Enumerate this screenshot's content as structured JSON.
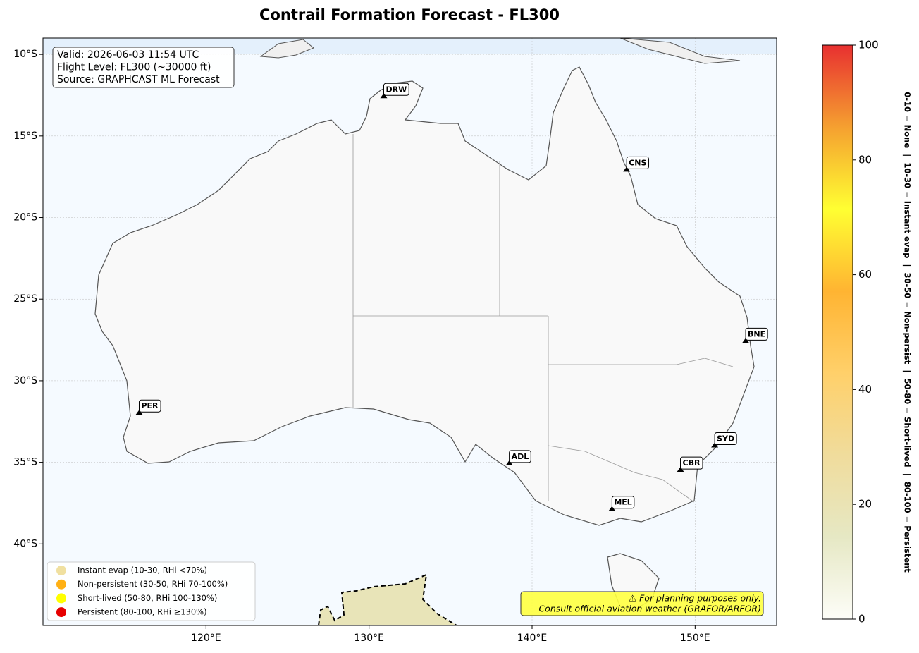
{
  "chart_data": {
    "type": "map",
    "title": "Contrail Formation Forecast - FL300",
    "xlim": [
      110,
      155
    ],
    "ylim": [
      -45,
      -9
    ],
    "xticks": [
      {
        "value": 120,
        "label": "120°E"
      },
      {
        "value": 130,
        "label": "130°E"
      },
      {
        "value": 140,
        "label": "140°E"
      },
      {
        "value": 150,
        "label": "150°E"
      }
    ],
    "yticks": [
      {
        "value": -10,
        "label": "10°S"
      },
      {
        "value": -15,
        "label": "15°S"
      },
      {
        "value": -20,
        "label": "20°S"
      },
      {
        "value": -25,
        "label": "25°S"
      },
      {
        "value": -30,
        "label": "30°S"
      },
      {
        "value": -35,
        "label": "35°S"
      },
      {
        "value": -40,
        "label": "40°S"
      }
    ],
    "grid": true,
    "airports": [
      {
        "code": "DRW",
        "lon": 130.9,
        "lat": -12.6
      },
      {
        "code": "CNS",
        "lon": 145.8,
        "lat": -17.1
      },
      {
        "code": "BNE",
        "lon": 153.1,
        "lat": -27.6
      },
      {
        "code": "PER",
        "lon": 115.9,
        "lat": -32.0
      },
      {
        "code": "ADL",
        "lon": 138.6,
        "lat": -35.1
      },
      {
        "code": "SYD",
        "lon": 151.2,
        "lat": -34.0
      },
      {
        "code": "CBR",
        "lon": 149.1,
        "lat": -35.5
      },
      {
        "code": "MEL",
        "lon": 144.9,
        "lat": -37.9
      }
    ],
    "info": [
      "Valid: 2026-06-03 11:54 UTC",
      "Flight Level: FL300 (~30000 ft)",
      "Source: GRAPHCAST ML Forecast"
    ],
    "legend": [
      {
        "name": "Instant evap (10-30, RHi <70%)",
        "color": "#f0e0a0"
      },
      {
        "name": "Non-persistent (30-50, RHi 70-100%)",
        "color": "#ffb014"
      },
      {
        "name": "Short-lived (50-80, RHi 100-130%)",
        "color": "#ffff00"
      },
      {
        "name": "Persistent (80-100, RHi ≥130%)",
        "color": "#e60000"
      }
    ],
    "disclaimer": [
      "⚠ For planning purposes only.",
      "Consult official aviation weather (GRAFOR/ARFOR)"
    ],
    "colorbar": {
      "label": "0-10 = None  |  10-30 = Instant evap  |  30-50 = Non-persist  |  50-80 = Short-lived  |  80-100 = Persistent",
      "lim": [
        0,
        100
      ],
      "ticks": [
        0,
        20,
        40,
        60,
        80,
        100
      ],
      "colors": [
        "#fdfdf8",
        "#e6e8c4",
        "#f0dc9c",
        "#ffd06a",
        "#ffb432",
        "#ffff32",
        "#f5a030",
        "#e83030"
      ]
    }
  }
}
